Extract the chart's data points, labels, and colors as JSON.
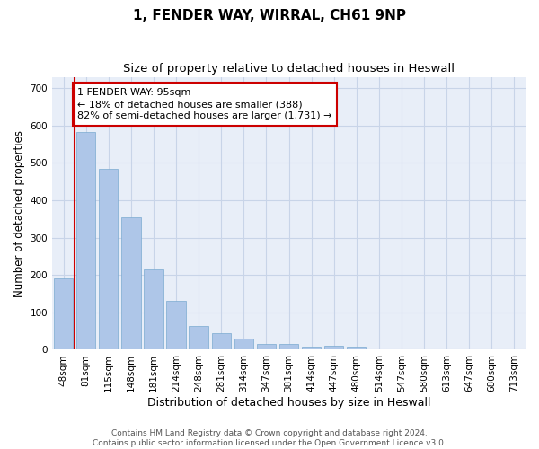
{
  "title1": "1, FENDER WAY, WIRRAL, CH61 9NP",
  "title2": "Size of property relative to detached houses in Heswall",
  "xlabel": "Distribution of detached houses by size in Heswall",
  "ylabel": "Number of detached properties",
  "categories": [
    "48sqm",
    "81sqm",
    "115sqm",
    "148sqm",
    "181sqm",
    "214sqm",
    "248sqm",
    "281sqm",
    "314sqm",
    "347sqm",
    "381sqm",
    "414sqm",
    "447sqm",
    "480sqm",
    "514sqm",
    "547sqm",
    "580sqm",
    "613sqm",
    "647sqm",
    "680sqm",
    "713sqm"
  ],
  "values": [
    192,
    583,
    485,
    355,
    215,
    130,
    63,
    44,
    31,
    16,
    16,
    9,
    11,
    9,
    0,
    0,
    0,
    0,
    0,
    0,
    0
  ],
  "bar_color": "#aec6e8",
  "bar_edge_color": "#7aaad0",
  "vline_color": "#cc0000",
  "annotation_text": "1 FENDER WAY: 95sqm\n← 18% of detached houses are smaller (388)\n82% of semi-detached houses are larger (1,731) →",
  "annotation_box_color": "#ffffff",
  "annotation_box_edge_color": "#cc0000",
  "ylim": [
    0,
    730
  ],
  "yticks": [
    0,
    100,
    200,
    300,
    400,
    500,
    600,
    700
  ],
  "grid_color": "#c8d4e8",
  "bg_color": "#e8eef8",
  "footer_text": "Contains HM Land Registry data © Crown copyright and database right 2024.\nContains public sector information licensed under the Open Government Licence v3.0.",
  "title1_fontsize": 11,
  "title2_fontsize": 9.5,
  "xlabel_fontsize": 9,
  "ylabel_fontsize": 8.5,
  "tick_fontsize": 7.5,
  "annotation_fontsize": 8,
  "footer_fontsize": 6.5
}
